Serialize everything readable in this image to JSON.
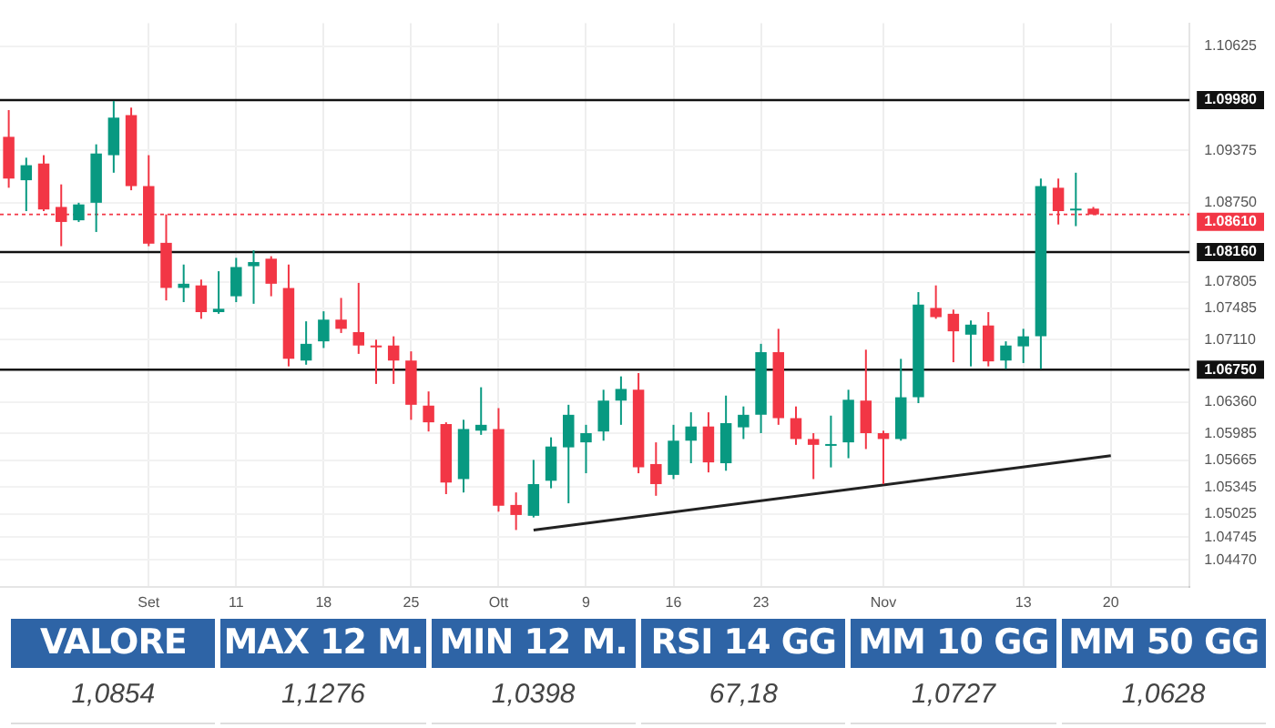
{
  "chart_data": [
    {
      "type": "candlestick",
      "categories": [
        null,
        null,
        null,
        null,
        null,
        null,
        null,
        null,
        "Set",
        null,
        null,
        null,
        null,
        "11",
        null,
        null,
        null,
        null,
        "18",
        null,
        null,
        null,
        null,
        "25",
        null,
        null,
        null,
        null,
        "Ott",
        null,
        null,
        null,
        null,
        "9",
        null,
        null,
        null,
        null,
        "16",
        null,
        null,
        null,
        null,
        "23",
        null,
        null,
        null,
        null,
        null,
        null,
        "Nov",
        null,
        null,
        null,
        null,
        null,
        null,
        null,
        "13",
        null,
        null,
        null,
        null,
        "20",
        null,
        null,
        null,
        null
      ],
      "ohlc": [
        [
          1.0954,
          1.0986,
          1.0893,
          1.0904
        ],
        [
          1.0902,
          1.0929,
          1.0865,
          1.092
        ],
        [
          1.0922,
          1.0932,
          1.0865,
          1.0867
        ],
        [
          1.087,
          1.0897,
          1.0823,
          1.0852
        ],
        [
          1.0854,
          1.0875,
          1.0852,
          1.0873
        ],
        [
          1.0875,
          1.0945,
          1.084,
          1.0934
        ],
        [
          1.0932,
          1.0997,
          1.0911,
          1.0977
        ],
        [
          1.098,
          1.0989,
          1.089,
          1.0895
        ],
        [
          1.0895,
          1.0932,
          1.0823,
          1.0826
        ],
        [
          1.0827,
          1.0861,
          1.0758,
          1.0773
        ],
        [
          1.0773,
          1.0801,
          1.0756,
          1.0778
        ],
        [
          1.0776,
          1.0783,
          1.0736,
          1.0744
        ],
        [
          1.0744,
          1.0793,
          1.0742,
          1.0748
        ],
        [
          1.0763,
          1.0809,
          1.0756,
          1.0798
        ],
        [
          1.0799,
          1.0818,
          1.0754,
          1.0804
        ],
        [
          1.0808,
          1.0811,
          1.0763,
          1.0778
        ],
        [
          1.0773,
          1.0801,
          1.0679,
          1.0688
        ],
        [
          1.0686,
          1.0733,
          1.0681,
          1.0706
        ],
        [
          1.0709,
          1.0745,
          1.0701,
          1.0735
        ],
        [
          1.0735,
          1.0761,
          1.0719,
          1.0724
        ],
        [
          1.072,
          1.0779,
          1.0694,
          1.0704
        ],
        [
          1.0704,
          1.0711,
          1.0658,
          1.0702
        ],
        [
          1.0704,
          1.0715,
          1.0658,
          1.0686
        ],
        [
          1.0686,
          1.0697,
          1.0615,
          1.0633
        ],
        [
          1.0632,
          1.0649,
          1.0601,
          1.0612
        ],
        [
          1.061,
          1.0612,
          1.0526,
          1.054
        ],
        [
          1.0544,
          1.0615,
          1.0528,
          1.0604
        ],
        [
          1.0602,
          1.0654,
          1.0597,
          1.0609
        ],
        [
          1.0604,
          1.0629,
          1.0505,
          1.0512
        ],
        [
          1.0513,
          1.0528,
          1.0483,
          1.0501
        ],
        [
          1.05,
          1.0567,
          1.0498,
          1.0538
        ],
        [
          1.0542,
          1.0594,
          1.0533,
          1.0583
        ],
        [
          1.0582,
          1.0633,
          1.0515,
          1.0621
        ],
        [
          1.0588,
          1.0609,
          1.0551,
          1.0599
        ],
        [
          1.0601,
          1.0651,
          1.059,
          1.0638
        ],
        [
          1.0638,
          1.0667,
          1.0609,
          1.0652
        ],
        [
          1.0651,
          1.0671,
          1.0551,
          1.0558
        ],
        [
          1.0562,
          1.0588,
          1.0524,
          1.0538
        ],
        [
          1.0549,
          1.0609,
          1.0544,
          1.059
        ],
        [
          1.059,
          1.0624,
          1.0563,
          1.0607
        ],
        [
          1.0607,
          1.0624,
          1.0552,
          1.0564
        ],
        [
          1.0563,
          1.0644,
          1.0554,
          1.0611
        ],
        [
          1.0606,
          1.0631,
          1.0592,
          1.0621
        ],
        [
          1.0621,
          1.0706,
          1.0599,
          1.0696
        ],
        [
          1.0696,
          1.0724,
          1.0609,
          1.0617
        ],
        [
          1.0617,
          1.0631,
          1.0585,
          1.0592
        ],
        [
          1.0592,
          1.0599,
          1.0544,
          1.0585
        ],
        [
          1.0585,
          1.062,
          1.0558,
          1.0586
        ],
        [
          1.0588,
          1.0651,
          1.0569,
          1.0639
        ],
        [
          1.0638,
          1.0699,
          1.058,
          1.0599
        ],
        [
          1.0599,
          1.0602,
          1.0538,
          1.0592
        ],
        [
          1.0592,
          1.0688,
          1.059,
          1.0642
        ],
        [
          1.0642,
          1.0768,
          1.0635,
          1.0753
        ],
        [
          1.0749,
          1.0776,
          1.0736,
          1.0738
        ],
        [
          1.0742,
          1.0747,
          1.0684,
          1.0721
        ],
        [
          1.0717,
          1.0734,
          1.0679,
          1.0729
        ],
        [
          1.0728,
          1.0744,
          1.0679,
          1.0685
        ],
        [
          1.0686,
          1.0709,
          1.0676,
          1.0704
        ],
        [
          1.0703,
          1.0724,
          1.0683,
          1.0715
        ],
        [
          1.0715,
          1.0904,
          1.0676,
          1.0895
        ],
        [
          1.0893,
          1.0904,
          1.0849,
          1.0865
        ],
        [
          1.0866,
          1.0911,
          1.0847,
          1.0868
        ],
        [
          1.0868,
          1.087,
          1.0861,
          1.0861
        ],
        null,
        null,
        null,
        null,
        null
      ],
      "colors": [
        "#f23645",
        "#089981",
        "#f23645",
        "#f23645",
        "#089981",
        "#089981",
        "#089981",
        "#f23645",
        "#f23645",
        "#f23645",
        "#089981",
        "#f23645",
        "#089981",
        "#089981",
        "#089981",
        "#f23645",
        "#f23645",
        "#089981",
        "#089981",
        "#f23645",
        "#f23645",
        "#f23645",
        "#f23645",
        "#f23645",
        "#f23645",
        "#f23645",
        "#089981",
        "#089981",
        "#f23645",
        "#f23645",
        "#089981",
        "#089981",
        "#089981",
        "#089981",
        "#089981",
        "#089981",
        "#f23645",
        "#f23645",
        "#089981",
        "#089981",
        "#f23645",
        "#089981",
        "#089981",
        "#089981",
        "#f23645",
        "#f23645",
        "#f23645",
        "#089981",
        "#089981",
        "#f23645",
        "#f23645",
        "#089981",
        "#089981",
        "#f23645",
        "#f23645",
        "#089981",
        "#f23645",
        "#089981",
        "#089981",
        "#089981",
        "#f23645",
        "#089981",
        "#f23645",
        null,
        null,
        null,
        null,
        null
      ],
      "series": [
        {
          "type": "line",
          "color": "#222222",
          "values": [
            null,
            null,
            null,
            null,
            null,
            null,
            null,
            null,
            null,
            null,
            null,
            null,
            null,
            null,
            null,
            null,
            null,
            null,
            null,
            null,
            null,
            null,
            null,
            null,
            null,
            null,
            null,
            null,
            null,
            null,
            1.0483,
            null,
            null,
            null,
            null,
            null,
            null,
            null,
            null,
            null,
            null,
            null,
            null,
            null,
            null,
            null,
            null,
            null,
            null,
            null,
            null,
            null,
            null,
            null,
            null,
            null,
            null,
            null,
            null,
            null,
            null,
            null,
            null,
            1.0572,
            null,
            null,
            null,
            null
          ]
        }
      ],
      "ylim": [
        1.0415,
        1.109
      ],
      "yticks": [
        {
          "value": 1.10625,
          "label": "1.10625"
        },
        {
          "value": 1.09375,
          "label": "1.09375"
        },
        {
          "value": 1.0875,
          "label": "1.08750"
        },
        {
          "value": 1.07805,
          "label": "1.07805"
        },
        {
          "value": 1.07485,
          "label": "1.07485"
        },
        {
          "value": 1.0711,
          "label": "1.07110"
        },
        {
          "value": 1.0636,
          "label": "1.06360"
        },
        {
          "value": 1.05985,
          "label": "1.05985"
        },
        {
          "value": 1.05665,
          "label": "1.05665"
        },
        {
          "value": 1.05345,
          "label": "1.05345"
        },
        {
          "value": 1.05025,
          "label": "1.05025"
        },
        {
          "value": 1.04745,
          "label": "1.04745"
        },
        {
          "value": 1.0447,
          "label": "1.04470"
        }
      ],
      "ref_lines": [
        {
          "axis": "y",
          "value": 1.0998,
          "label": "1.09980",
          "color": "#111111"
        },
        {
          "axis": "y",
          "value": 1.0861,
          "label": "1.08610",
          "color": "#f23645",
          "line_style": "dotted"
        },
        {
          "axis": "y",
          "value": 1.0816,
          "label": "1.08160",
          "color": "#111111"
        },
        {
          "axis": "y",
          "value": 1.0675,
          "label": "1.06750",
          "color": "#111111"
        }
      ],
      "grid": true,
      "legend": false
    },
    {
      "type": "other",
      "categories": [
        "VALORE",
        "MAX 12 M.",
        "MIN 12 M.",
        "RSI 14 GG",
        "MM 10 GG",
        "MM 50 GG"
      ],
      "value_labels": [
        "1,0854",
        "1,1276",
        "1,0398",
        "67,18",
        "1,0727",
        "1,0628"
      ]
    }
  ]
}
